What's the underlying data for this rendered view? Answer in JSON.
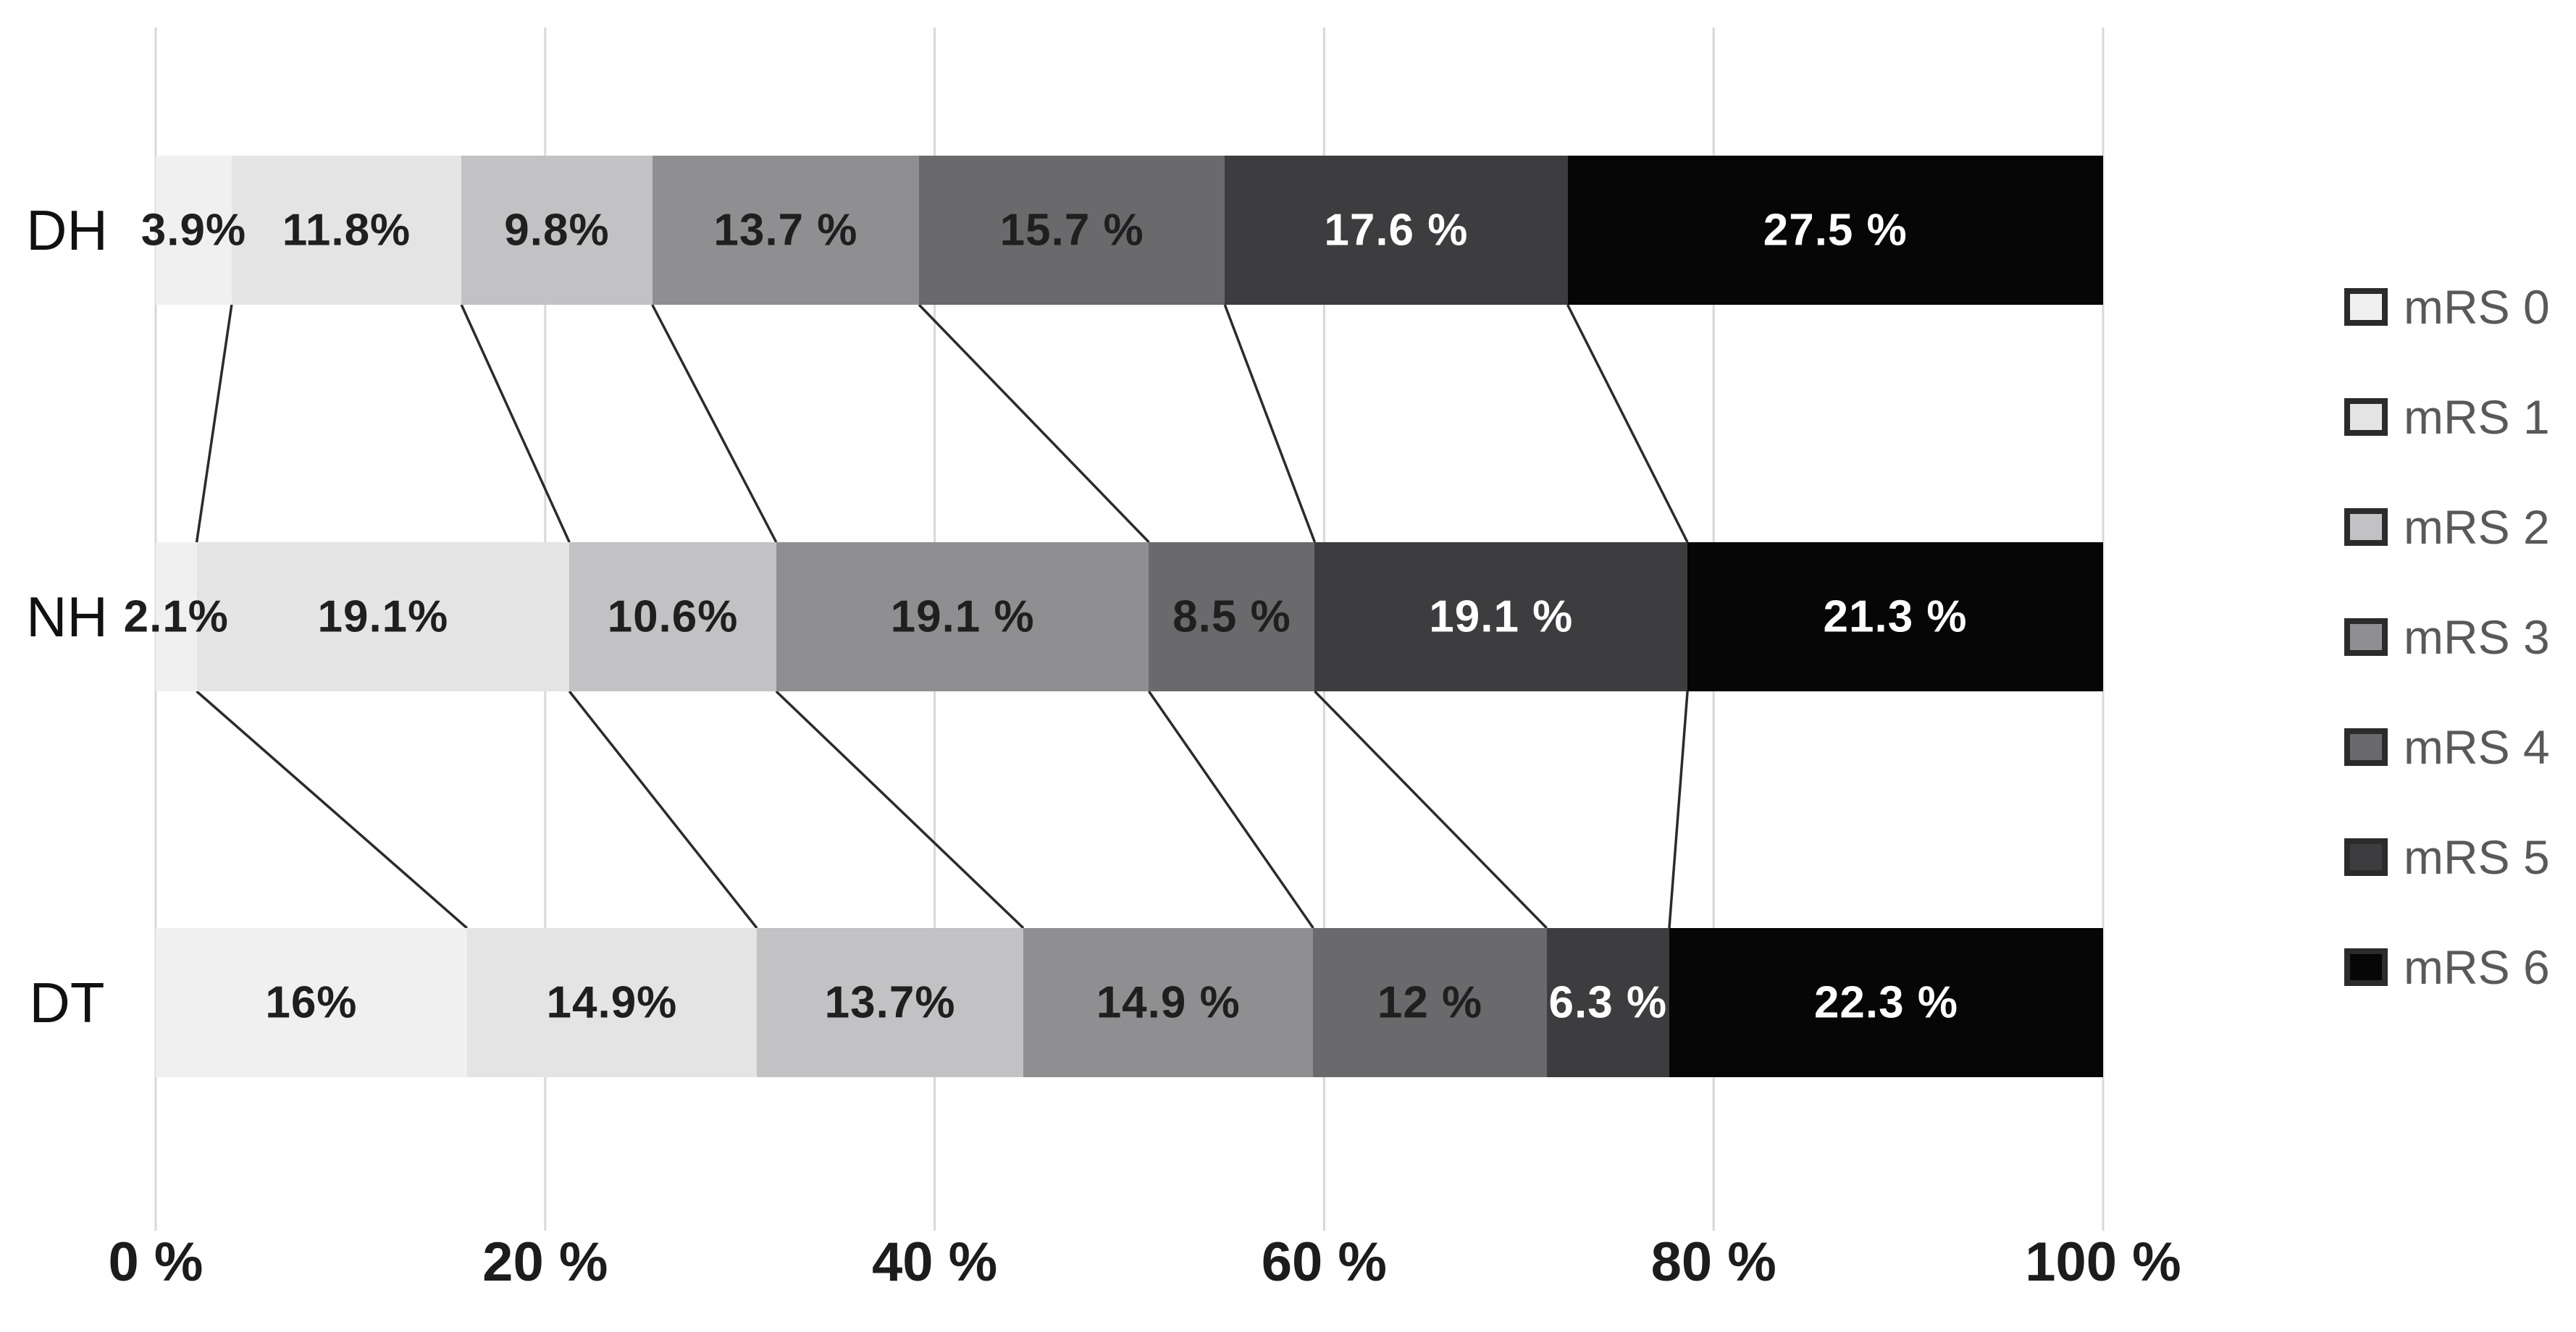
{
  "chart_data": {
    "type": "bar",
    "variant": "horizontal-100pct-stacked",
    "title": "",
    "categories": [
      "DH",
      "NH",
      "DT"
    ],
    "series": [
      {
        "name": "mRS 0",
        "color": "#f1f0f1",
        "label_color": "#1f1f1f",
        "values": [
          3.9,
          2.1,
          16
        ],
        "display_labels": [
          "3.9%",
          "2.1%",
          "16%"
        ]
      },
      {
        "name": "mRS 1",
        "color": "#e5e4e5",
        "label_color": "#1f1f1f",
        "values": [
          11.8,
          19.1,
          14.9
        ],
        "display_labels": [
          "11.8%",
          "19.1%",
          "14.9%"
        ]
      },
      {
        "name": "mRS 2",
        "color": "#c2c1c3",
        "label_color": "#1f1f1f",
        "values": [
          9.8,
          10.6,
          13.7
        ],
        "display_labels": [
          "9.8%",
          "10.6%",
          "13.7%"
        ]
      },
      {
        "name": "mRS 3",
        "color": "#8f8f91",
        "label_color": "#1f1f1f",
        "values": [
          13.7,
          19.1,
          14.9
        ],
        "display_labels": [
          "13.7 %",
          "19.1 %",
          "14.9 %"
        ]
      },
      {
        "name": "mRS 4",
        "color": "#6a696b",
        "label_color": "#1f1f1f",
        "values": [
          15.7,
          8.5,
          12
        ],
        "display_labels": [
          "15.7 %",
          "8.5 %",
          "12 %"
        ]
      },
      {
        "name": "mRS 5",
        "color": "#3d3c3e",
        "label_color": "#ffffff",
        "values": [
          17.6,
          19.1,
          6.3
        ],
        "display_labels": [
          "17.6 %",
          "19.1 %",
          "6.3 %"
        ]
      },
      {
        "name": "mRS 6",
        "color": "#060606",
        "label_color": "#ffffff",
        "values": [
          27.5,
          21.3,
          22.3
        ],
        "display_labels": [
          "27.5 %",
          "21.3 %",
          "22.3 %"
        ]
      }
    ],
    "x_axis": {
      "range": [
        0,
        100
      ],
      "gridlines": true,
      "ticks": [
        {
          "label": "0 %",
          "value": 0
        },
        {
          "label": "20 %",
          "value": 20
        },
        {
          "label": "40 %",
          "value": 40
        },
        {
          "label": "60 %",
          "value": 60
        },
        {
          "label": "80 %",
          "value": 80
        },
        {
          "label": "100 %",
          "value": 100
        }
      ]
    },
    "legend": {
      "position": "right",
      "entries": [
        "mRS 0",
        "mRS 1",
        "mRS 2",
        "mRS 3",
        "mRS 4",
        "mRS 5",
        "mRS 6"
      ]
    },
    "connectors_between_rows": true
  },
  "colors": {
    "background": "#ffffff",
    "gridline": "#d8d8d8",
    "connector_line": "#2b2b2b",
    "axis_text": "#1c1c1c",
    "row_label_text": "#111111",
    "legend_text": "#595959",
    "swatch_border": "#2b2b2b"
  }
}
